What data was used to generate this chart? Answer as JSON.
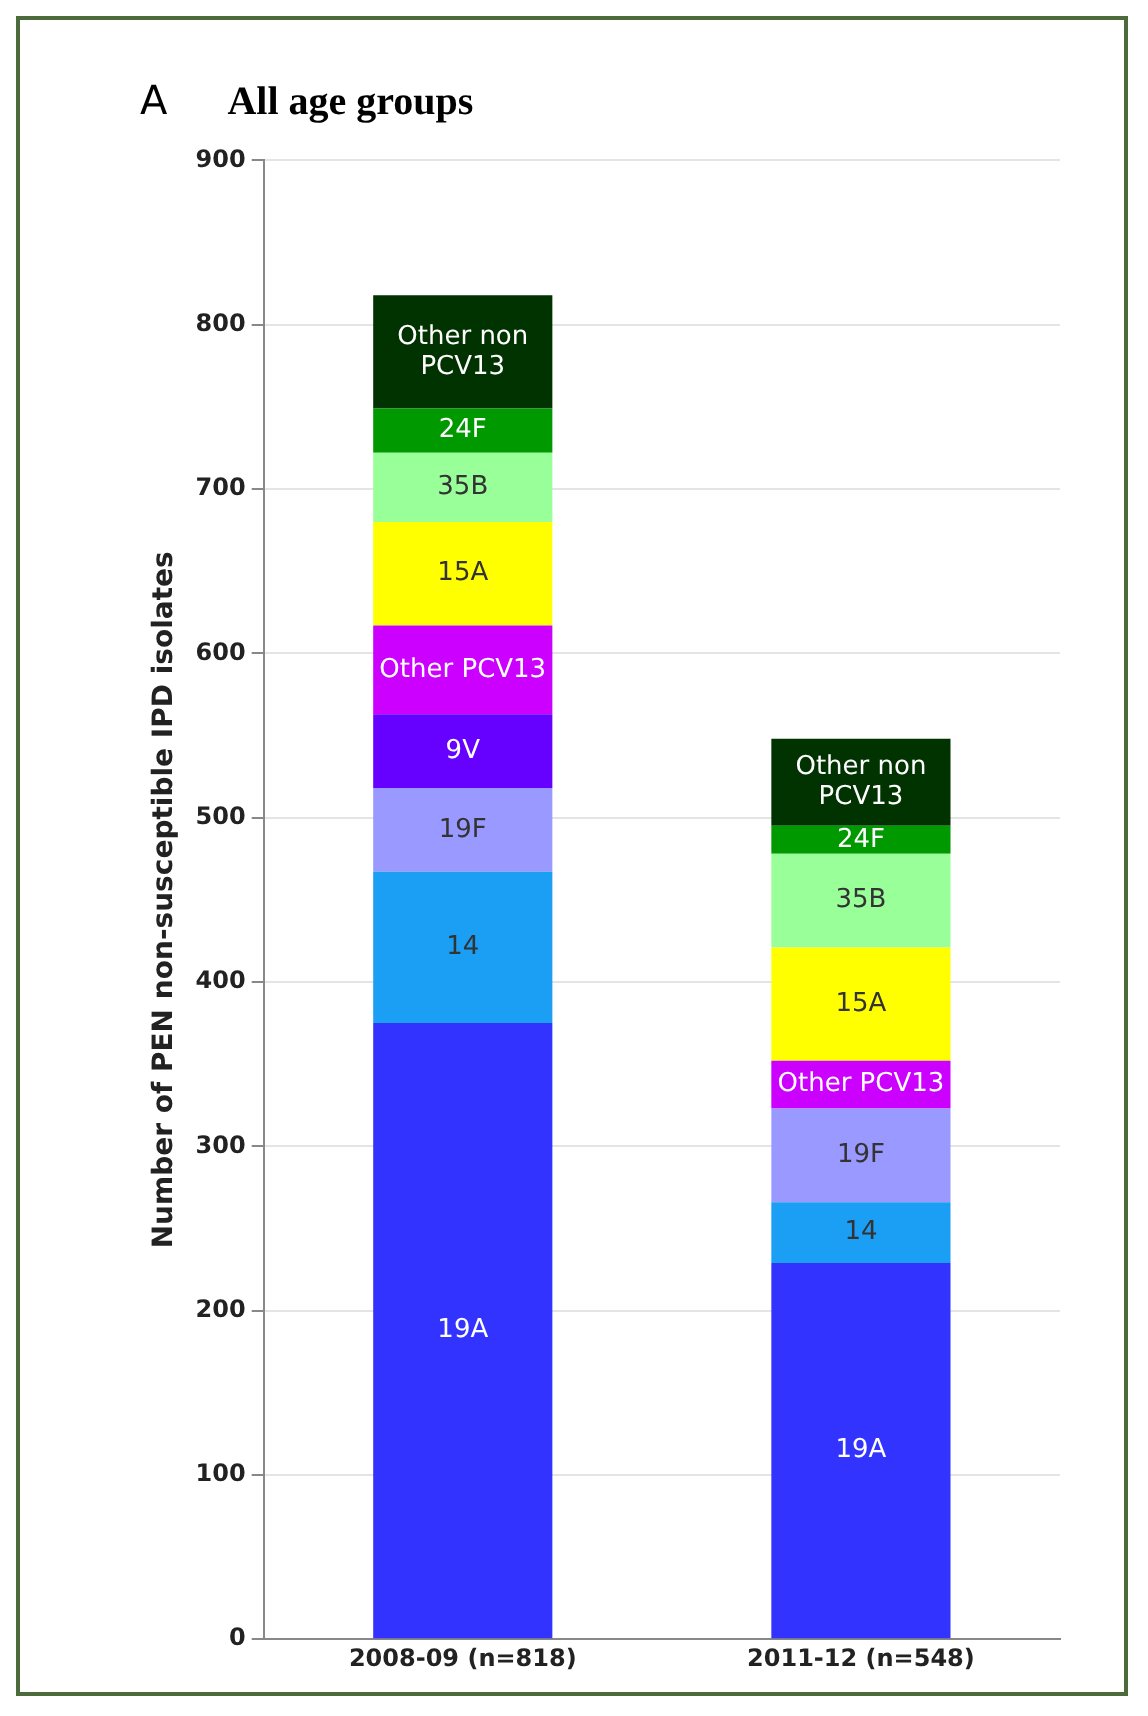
{
  "chart_data": {
    "type": "bar",
    "title": "All age groups",
    "annotations": [
      "A"
    ],
    "ylabel": "Number of PEN non-susceptible IPD isolates",
    "categories": [
      "2008-09 (n=818)",
      "2011-12 (n=548)"
    ],
    "stacked": true,
    "ylim": [
      0,
      900
    ],
    "yticks": [
      0,
      100,
      200,
      300,
      400,
      500,
      600,
      700,
      800,
      900
    ],
    "grid": "y",
    "legend": false,
    "series": [
      {
        "name": "19A",
        "color": "#3333ff",
        "values": [
          375,
          229
        ]
      },
      {
        "name": "14",
        "color": "#1a9ff5",
        "values": [
          92,
          37
        ]
      },
      {
        "name": "19F",
        "color": "#9999ff",
        "values": [
          51,
          57
        ]
      },
      {
        "name": "9V",
        "color": "#6600ff",
        "values": [
          45,
          null
        ]
      },
      {
        "name": "Other PCV13",
        "color": "#cc00ff",
        "values": [
          54,
          29
        ]
      },
      {
        "name": "15A",
        "color": "#ffff00",
        "values": [
          63,
          69
        ]
      },
      {
        "name": "35B",
        "color": "#99ff99",
        "values": [
          42,
          57
        ]
      },
      {
        "name": "24F",
        "color": "#009900",
        "values": [
          27,
          17
        ]
      },
      {
        "name": "Other non PCV13",
        "color": "#003300",
        "values": [
          69,
          53
        ]
      }
    ]
  }
}
